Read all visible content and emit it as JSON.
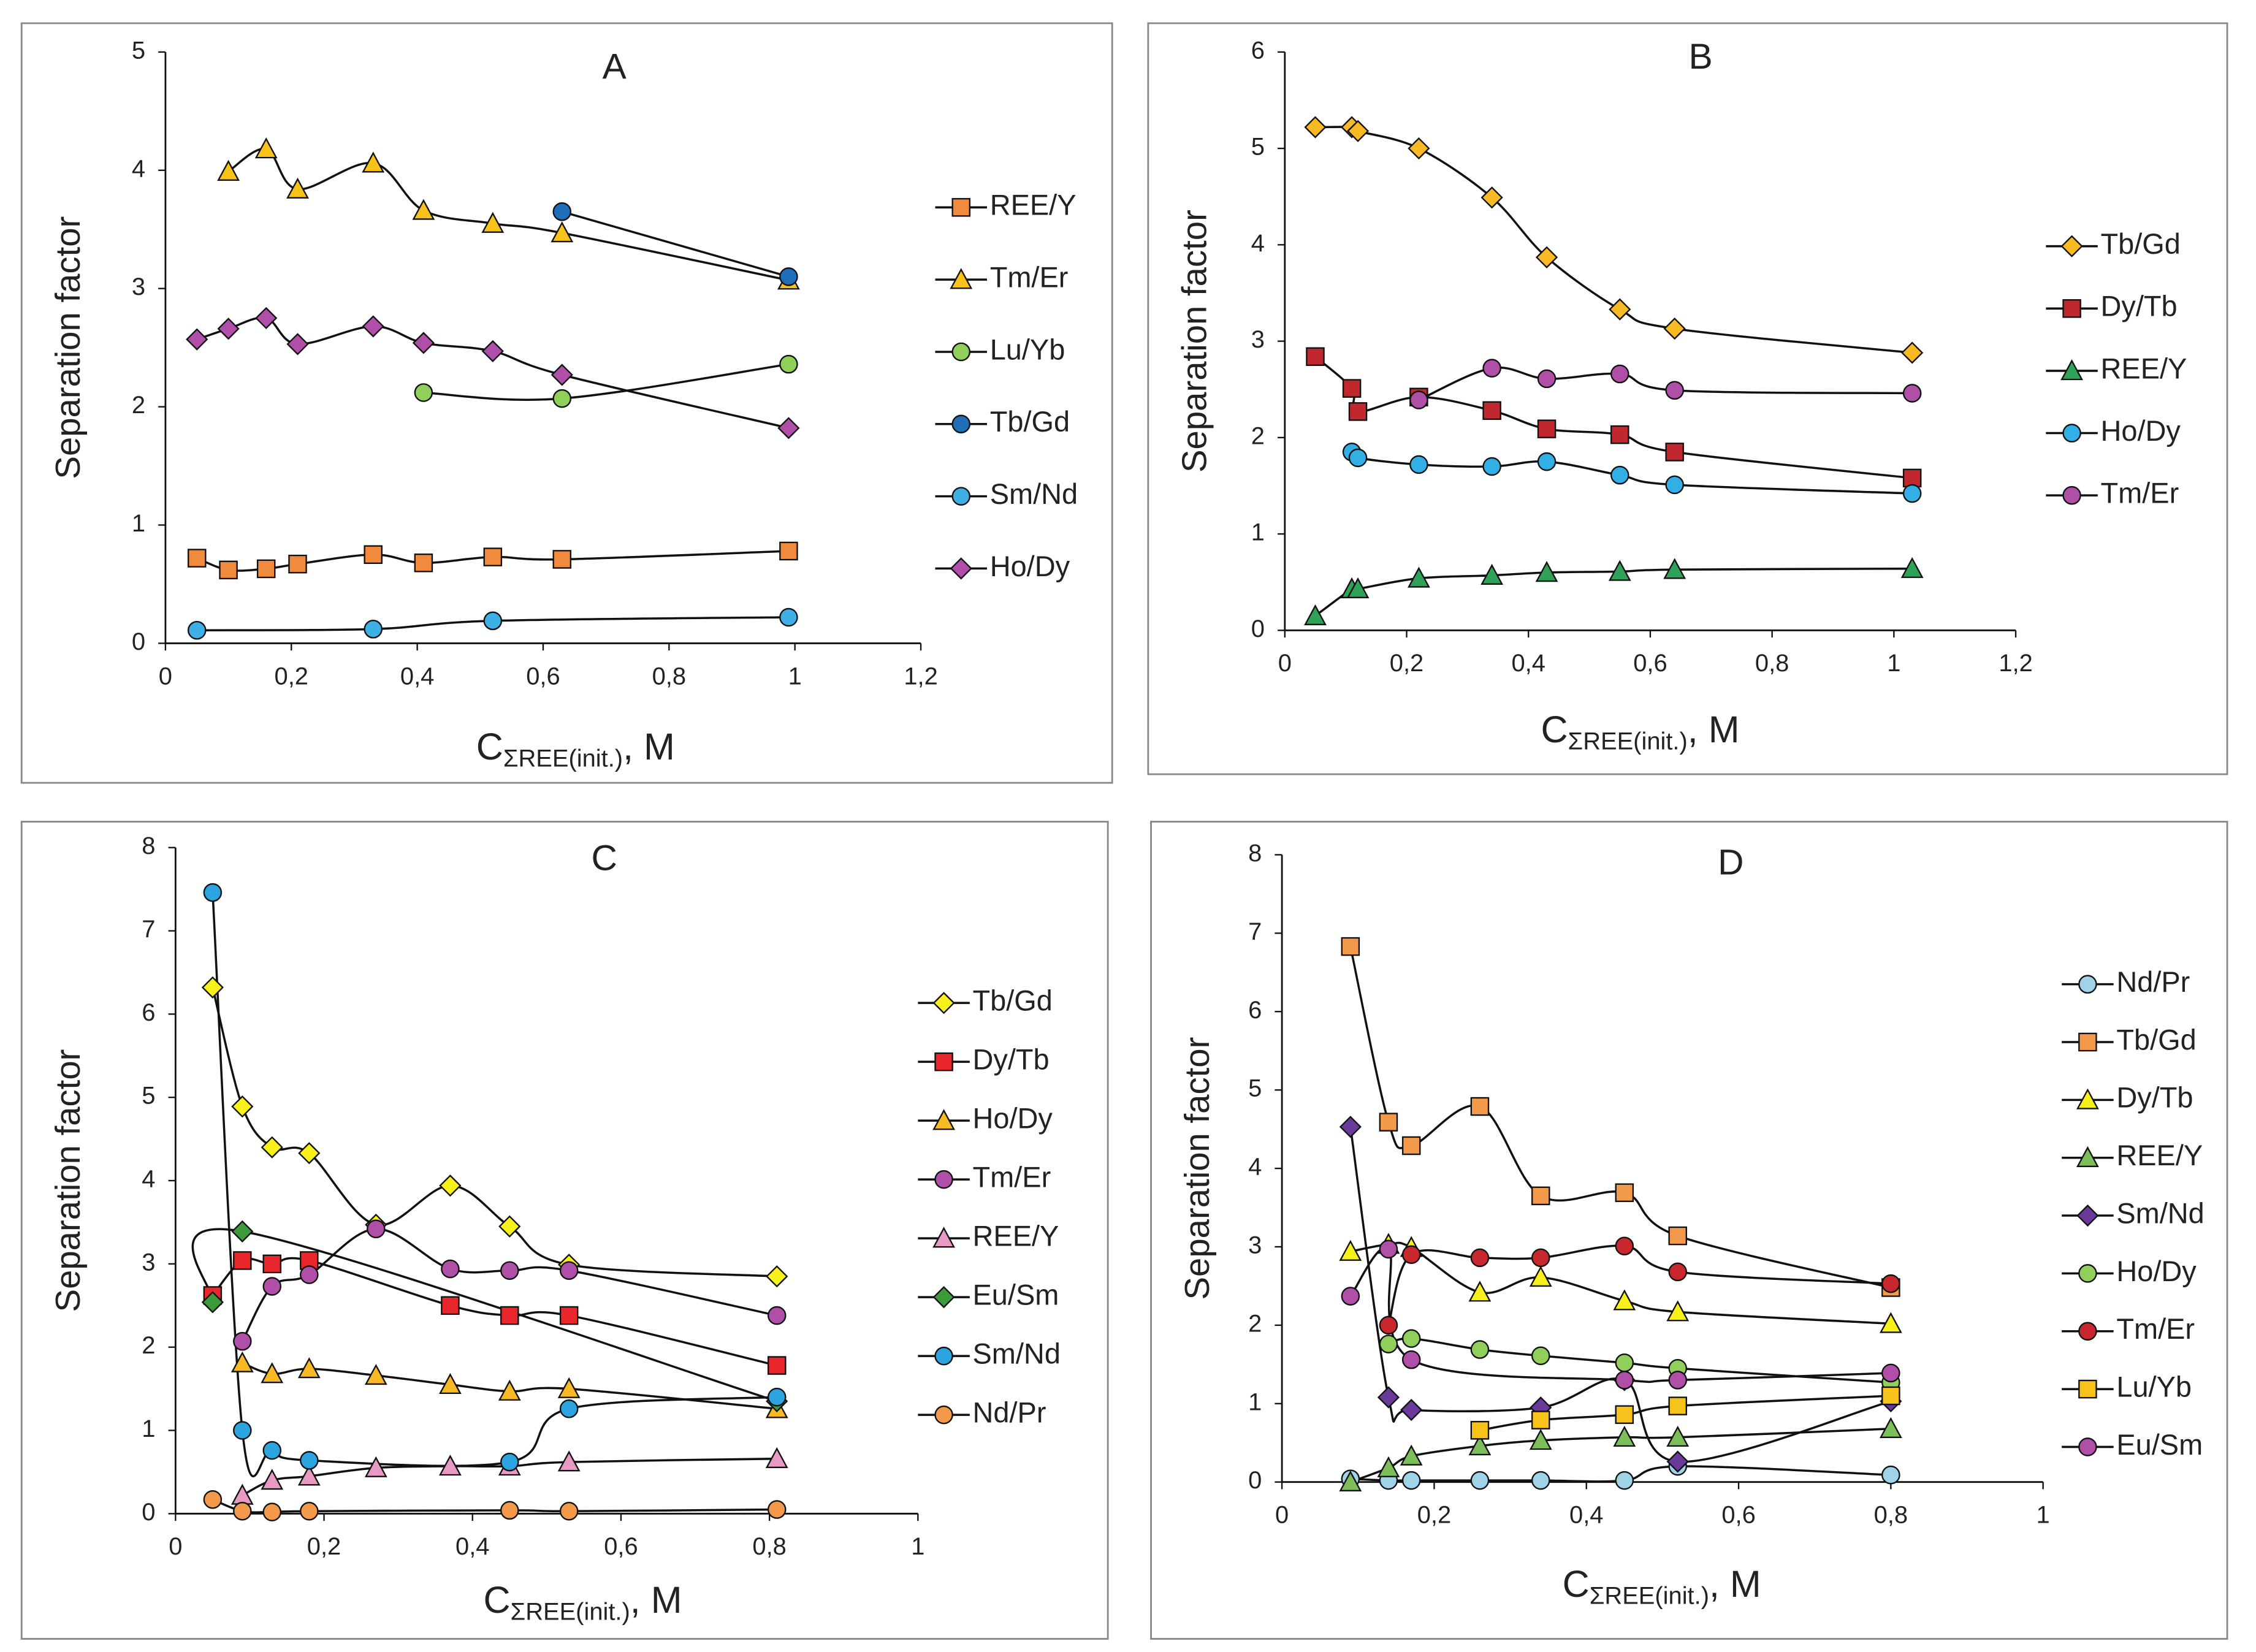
{
  "chart_data": [
    {
      "type": "line",
      "title": "A",
      "y_label": "Separation factor",
      "x_label": {
        "main": "C",
        "sub": "ΣREE(init.)",
        "rest": ", M"
      },
      "xlim": [
        0,
        1.2
      ],
      "ylim": [
        0,
        5
      ],
      "xticks": [
        0,
        {
          "value": 0.2,
          "label": "0,2"
        },
        {
          "value": 0.4,
          "label": "0,4"
        },
        {
          "value": 0.6,
          "label": "0,6"
        },
        {
          "value": 0.8,
          "label": "0,8"
        },
        1,
        {
          "value": 1.2,
          "label": "1,2"
        }
      ],
      "yticks": [
        0,
        1,
        2,
        3,
        4,
        5
      ],
      "series": [
        {
          "name": "REE/Y",
          "color": "#f08a3c",
          "marker": "square",
          "x": [
            0.05,
            0.1,
            0.16,
            0.21,
            0.33,
            0.41,
            0.52,
            0.63,
            0.99
          ],
          "values": [
            0.72,
            0.62,
            0.63,
            0.67,
            0.75,
            0.68,
            0.73,
            0.71,
            0.78
          ]
        },
        {
          "name": "Tm/Er",
          "color": "#f7c31a",
          "marker": "triangle",
          "x": [
            0.1,
            0.16,
            0.21,
            0.33,
            0.41,
            0.52,
            0.63,
            0.99
          ],
          "values": [
            3.99,
            4.18,
            3.84,
            4.06,
            3.66,
            3.55,
            3.47,
            3.07
          ]
        },
        {
          "name": "Lu/Yb",
          "color": "#8fcf5a",
          "marker": "circle",
          "x": [
            0.41,
            0.63,
            0.99
          ],
          "values": [
            2.12,
            2.07,
            2.36
          ]
        },
        {
          "name": "Tb/Gd",
          "color": "#1f6fb8",
          "marker": "circle",
          "x": [
            0.63,
            0.99
          ],
          "values": [
            3.65,
            3.1
          ]
        },
        {
          "name": "Sm/Nd",
          "color": "#3fb0e6",
          "marker": "circle",
          "x": [
            0.05,
            0.33,
            0.52,
            0.99
          ],
          "values": [
            0.11,
            0.12,
            0.19,
            0.22
          ]
        },
        {
          "name": "Ho/Dy",
          "color": "#b04fa8",
          "marker": "diamond",
          "x": [
            0.05,
            0.1,
            0.16,
            0.21,
            0.33,
            0.41,
            0.52,
            0.63,
            0.99
          ],
          "values": [
            2.57,
            2.66,
            2.75,
            2.53,
            2.68,
            2.54,
            2.47,
            2.27,
            1.82
          ]
        }
      ]
    },
    {
      "type": "line",
      "title": "B",
      "y_label": "Separation factor",
      "x_label": {
        "main": "C",
        "sub": "ΣREE(init.)",
        "rest": ", M"
      },
      "xlim": [
        0,
        1.2
      ],
      "ylim": [
        0,
        6
      ],
      "xticks": [
        0,
        {
          "value": 0.2,
          "label": "0,2"
        },
        {
          "value": 0.4,
          "label": "0,4"
        },
        {
          "value": 0.6,
          "label": "0,6"
        },
        {
          "value": 0.8,
          "label": "0,8"
        },
        1,
        {
          "value": 1.2,
          "label": "1,2"
        }
      ],
      "yticks": [
        0,
        1,
        2,
        3,
        4,
        5,
        6
      ],
      "series": [
        {
          "name": "Tb/Gd",
          "color": "#f7b924",
          "marker": "diamond",
          "x": [
            0.05,
            0.11,
            0.12,
            0.22,
            0.34,
            0.43,
            0.55,
            0.64,
            1.03
          ],
          "values": [
            5.22,
            5.22,
            5.18,
            5.0,
            4.49,
            3.87,
            3.33,
            3.13,
            2.88
          ]
        },
        {
          "name": "Dy/Tb",
          "color": "#c0282d",
          "marker": "square",
          "x": [
            0.05,
            0.11,
            0.12,
            0.22,
            0.34,
            0.43,
            0.55,
            0.64,
            1.03
          ],
          "values": [
            2.84,
            2.51,
            2.27,
            2.42,
            2.28,
            2.09,
            2.03,
            1.85,
            1.58
          ]
        },
        {
          "name": "REE/Y",
          "color": "#2ea357",
          "marker": "triangle",
          "x": [
            0.05,
            0.11,
            0.12,
            0.22,
            0.34,
            0.43,
            0.55,
            0.64,
            1.03
          ],
          "values": [
            0.15,
            0.43,
            0.43,
            0.54,
            0.57,
            0.6,
            0.61,
            0.63,
            0.64
          ]
        },
        {
          "name": "Ho/Dy",
          "color": "#32b0e6",
          "marker": "circle",
          "x": [
            0.11,
            0.12,
            0.22,
            0.34,
            0.43,
            0.55,
            0.64,
            1.03
          ],
          "values": [
            1.85,
            1.79,
            1.72,
            1.7,
            1.75,
            1.61,
            1.51,
            1.42
          ]
        },
        {
          "name": "Tm/Er",
          "color": "#b04fa8",
          "marker": "circle",
          "x": [
            0.22,
            0.34,
            0.43,
            0.55,
            0.64,
            1.03
          ],
          "values": [
            2.39,
            2.72,
            2.61,
            2.66,
            2.49,
            2.46
          ]
        }
      ]
    },
    {
      "type": "line",
      "title": "C",
      "y_label": "Separation factor",
      "x_label": {
        "main": "C",
        "sub": "ΣREE(init.)",
        "rest": ", M"
      },
      "xlim": [
        0,
        1
      ],
      "ylim": [
        0,
        8
      ],
      "xticks": [
        0,
        {
          "value": 0.2,
          "label": "0,2"
        },
        {
          "value": 0.4,
          "label": "0,4"
        },
        {
          "value": 0.6,
          "label": "0,6"
        },
        {
          "value": 0.8,
          "label": "0,8"
        },
        1
      ],
      "yticks": [
        0,
        1,
        2,
        3,
        4,
        5,
        6,
        7,
        8
      ],
      "series": [
        {
          "name": "Tb/Gd",
          "color": "#f8f01a",
          "marker": "diamond",
          "x": [
            0.05,
            0.09,
            0.13,
            0.18,
            0.27,
            0.37,
            0.45,
            0.53,
            0.81
          ],
          "values": [
            6.32,
            4.89,
            4.4,
            4.33,
            3.47,
            3.94,
            3.45,
            2.99,
            2.85
          ]
        },
        {
          "name": "Dy/Tb",
          "color": "#e8262c",
          "marker": "square",
          "x": [
            0.05,
            0.09,
            0.13,
            0.18,
            0.37,
            0.45,
            0.53,
            0.81
          ],
          "values": [
            2.62,
            3.04,
            3.0,
            3.04,
            2.5,
            2.38,
            2.38,
            1.78
          ]
        },
        {
          "name": "Ho/Dy",
          "color": "#f7b924",
          "marker": "triangle",
          "x": [
            0.09,
            0.13,
            0.18,
            0.27,
            0.37,
            0.45,
            0.53,
            0.81
          ],
          "values": [
            1.81,
            1.68,
            1.74,
            1.66,
            1.55,
            1.47,
            1.5,
            1.26
          ]
        },
        {
          "name": "Tm/Er",
          "color": "#b04fa8",
          "marker": "circle",
          "x": [
            0.09,
            0.13,
            0.18,
            0.27,
            0.37,
            0.45,
            0.53,
            0.81
          ],
          "values": [
            2.07,
            2.73,
            2.87,
            3.42,
            2.94,
            2.92,
            2.92,
            2.38
          ]
        },
        {
          "name": "REE/Y",
          "color": "#e89ac4",
          "marker": "triangle",
          "x": [
            0.09,
            0.13,
            0.18,
            0.27,
            0.37,
            0.45,
            0.53,
            0.81
          ],
          "values": [
            0.22,
            0.4,
            0.45,
            0.55,
            0.57,
            0.57,
            0.62,
            0.66
          ]
        },
        {
          "name": "Eu/Sm",
          "color": "#3d9a3b",
          "marker": "diamond",
          "x": [
            0.05,
            0.09,
            0.81
          ],
          "values": [
            2.54,
            3.39,
            1.35
          ]
        },
        {
          "name": "Sm/Nd",
          "color": "#2ba4e0",
          "marker": "circle",
          "x": [
            0.05,
            0.09,
            0.13,
            0.18,
            0.45,
            0.53,
            0.81
          ],
          "values": [
            7.46,
            1.0,
            0.76,
            0.64,
            0.62,
            1.26,
            1.4
          ]
        },
        {
          "name": "Nd/Pr",
          "color": "#f39a4a",
          "marker": "circle",
          "x": [
            0.05,
            0.09,
            0.13,
            0.18,
            0.45,
            0.53,
            0.81
          ],
          "values": [
            0.17,
            0.03,
            0.02,
            0.03,
            0.04,
            0.03,
            0.05
          ]
        }
      ]
    },
    {
      "type": "line",
      "title": "D",
      "y_label": "Separation factor",
      "x_label": {
        "main": "C",
        "sub": "ΣREE(init.)",
        "rest": ", M"
      },
      "xlim": [
        0,
        1
      ],
      "ylim": [
        0,
        8
      ],
      "xticks": [
        0,
        {
          "value": 0.2,
          "label": "0,2"
        },
        {
          "value": 0.4,
          "label": "0,4"
        },
        {
          "value": 0.6,
          "label": "0,6"
        },
        {
          "value": 0.8,
          "label": "0,8"
        },
        1
      ],
      "yticks": [
        0,
        1,
        2,
        3,
        4,
        5,
        6,
        7,
        8
      ],
      "series": [
        {
          "name": "Nd/Pr",
          "color": "#9fd4e8",
          "marker": "circle",
          "x": [
            0.09,
            0.14,
            0.17,
            0.26,
            0.34,
            0.45,
            0.52,
            0.8
          ],
          "values": [
            0.04,
            0.02,
            0.02,
            0.02,
            0.02,
            0.02,
            0.2,
            0.09
          ]
        },
        {
          "name": "Tb/Gd",
          "color": "#f39a4a",
          "marker": "square",
          "x": [
            0.09,
            0.14,
            0.17,
            0.26,
            0.34,
            0.45,
            0.52,
            0.8
          ],
          "values": [
            6.83,
            4.59,
            4.29,
            4.79,
            3.65,
            3.69,
            3.14,
            2.48
          ]
        },
        {
          "name": "Dy/Tb",
          "color": "#f8f01a",
          "marker": "triangle",
          "x": [
            0.09,
            0.14,
            0.17,
            0.26,
            0.34,
            0.45,
            0.52,
            0.8
          ],
          "values": [
            2.94,
            3.03,
            2.99,
            2.42,
            2.61,
            2.31,
            2.17,
            2.02
          ]
        },
        {
          "name": "REE/Y",
          "color": "#7cbf5a",
          "marker": "triangle",
          "x": [
            0.09,
            0.14,
            0.17,
            0.26,
            0.34,
            0.45,
            0.52,
            0.8
          ],
          "values": [
            0.0,
            0.18,
            0.33,
            0.46,
            0.53,
            0.57,
            0.57,
            0.68
          ]
        },
        {
          "name": "Sm/Nd",
          "color": "#6a3a9b",
          "marker": "diamond",
          "x": [
            0.09,
            0.14,
            0.17,
            0.34,
            0.45,
            0.52,
            0.8
          ],
          "values": [
            4.53,
            1.08,
            0.92,
            0.95,
            1.3,
            0.26,
            1.03
          ]
        },
        {
          "name": "Ho/Dy",
          "color": "#8fcf5a",
          "marker": "circle",
          "x": [
            0.14,
            0.17,
            0.26,
            0.34,
            0.45,
            0.52,
            0.8
          ],
          "values": [
            1.76,
            1.83,
            1.69,
            1.61,
            1.52,
            1.45,
            1.27
          ]
        },
        {
          "name": "Tm/Er",
          "color": "#c8282d",
          "marker": "circle",
          "x": [
            0.14,
            0.17,
            0.26,
            0.34,
            0.45,
            0.52,
            0.8
          ],
          "values": [
            2.0,
            2.9,
            2.86,
            2.86,
            3.01,
            2.68,
            2.53
          ]
        },
        {
          "name": "Lu/Yb",
          "color": "#f7c31a",
          "marker": "square",
          "x": [
            0.26,
            0.34,
            0.45,
            0.52,
            0.8
          ],
          "values": [
            0.66,
            0.79,
            0.86,
            0.97,
            1.1
          ]
        },
        {
          "name": "Eu/Sm",
          "color": "#b04fa8",
          "marker": "circle",
          "x": [
            0.09,
            0.14,
            0.17,
            0.45,
            0.52,
            0.8
          ],
          "values": [
            2.37,
            2.97,
            1.56,
            1.3,
            1.3,
            1.39
          ]
        }
      ]
    }
  ]
}
